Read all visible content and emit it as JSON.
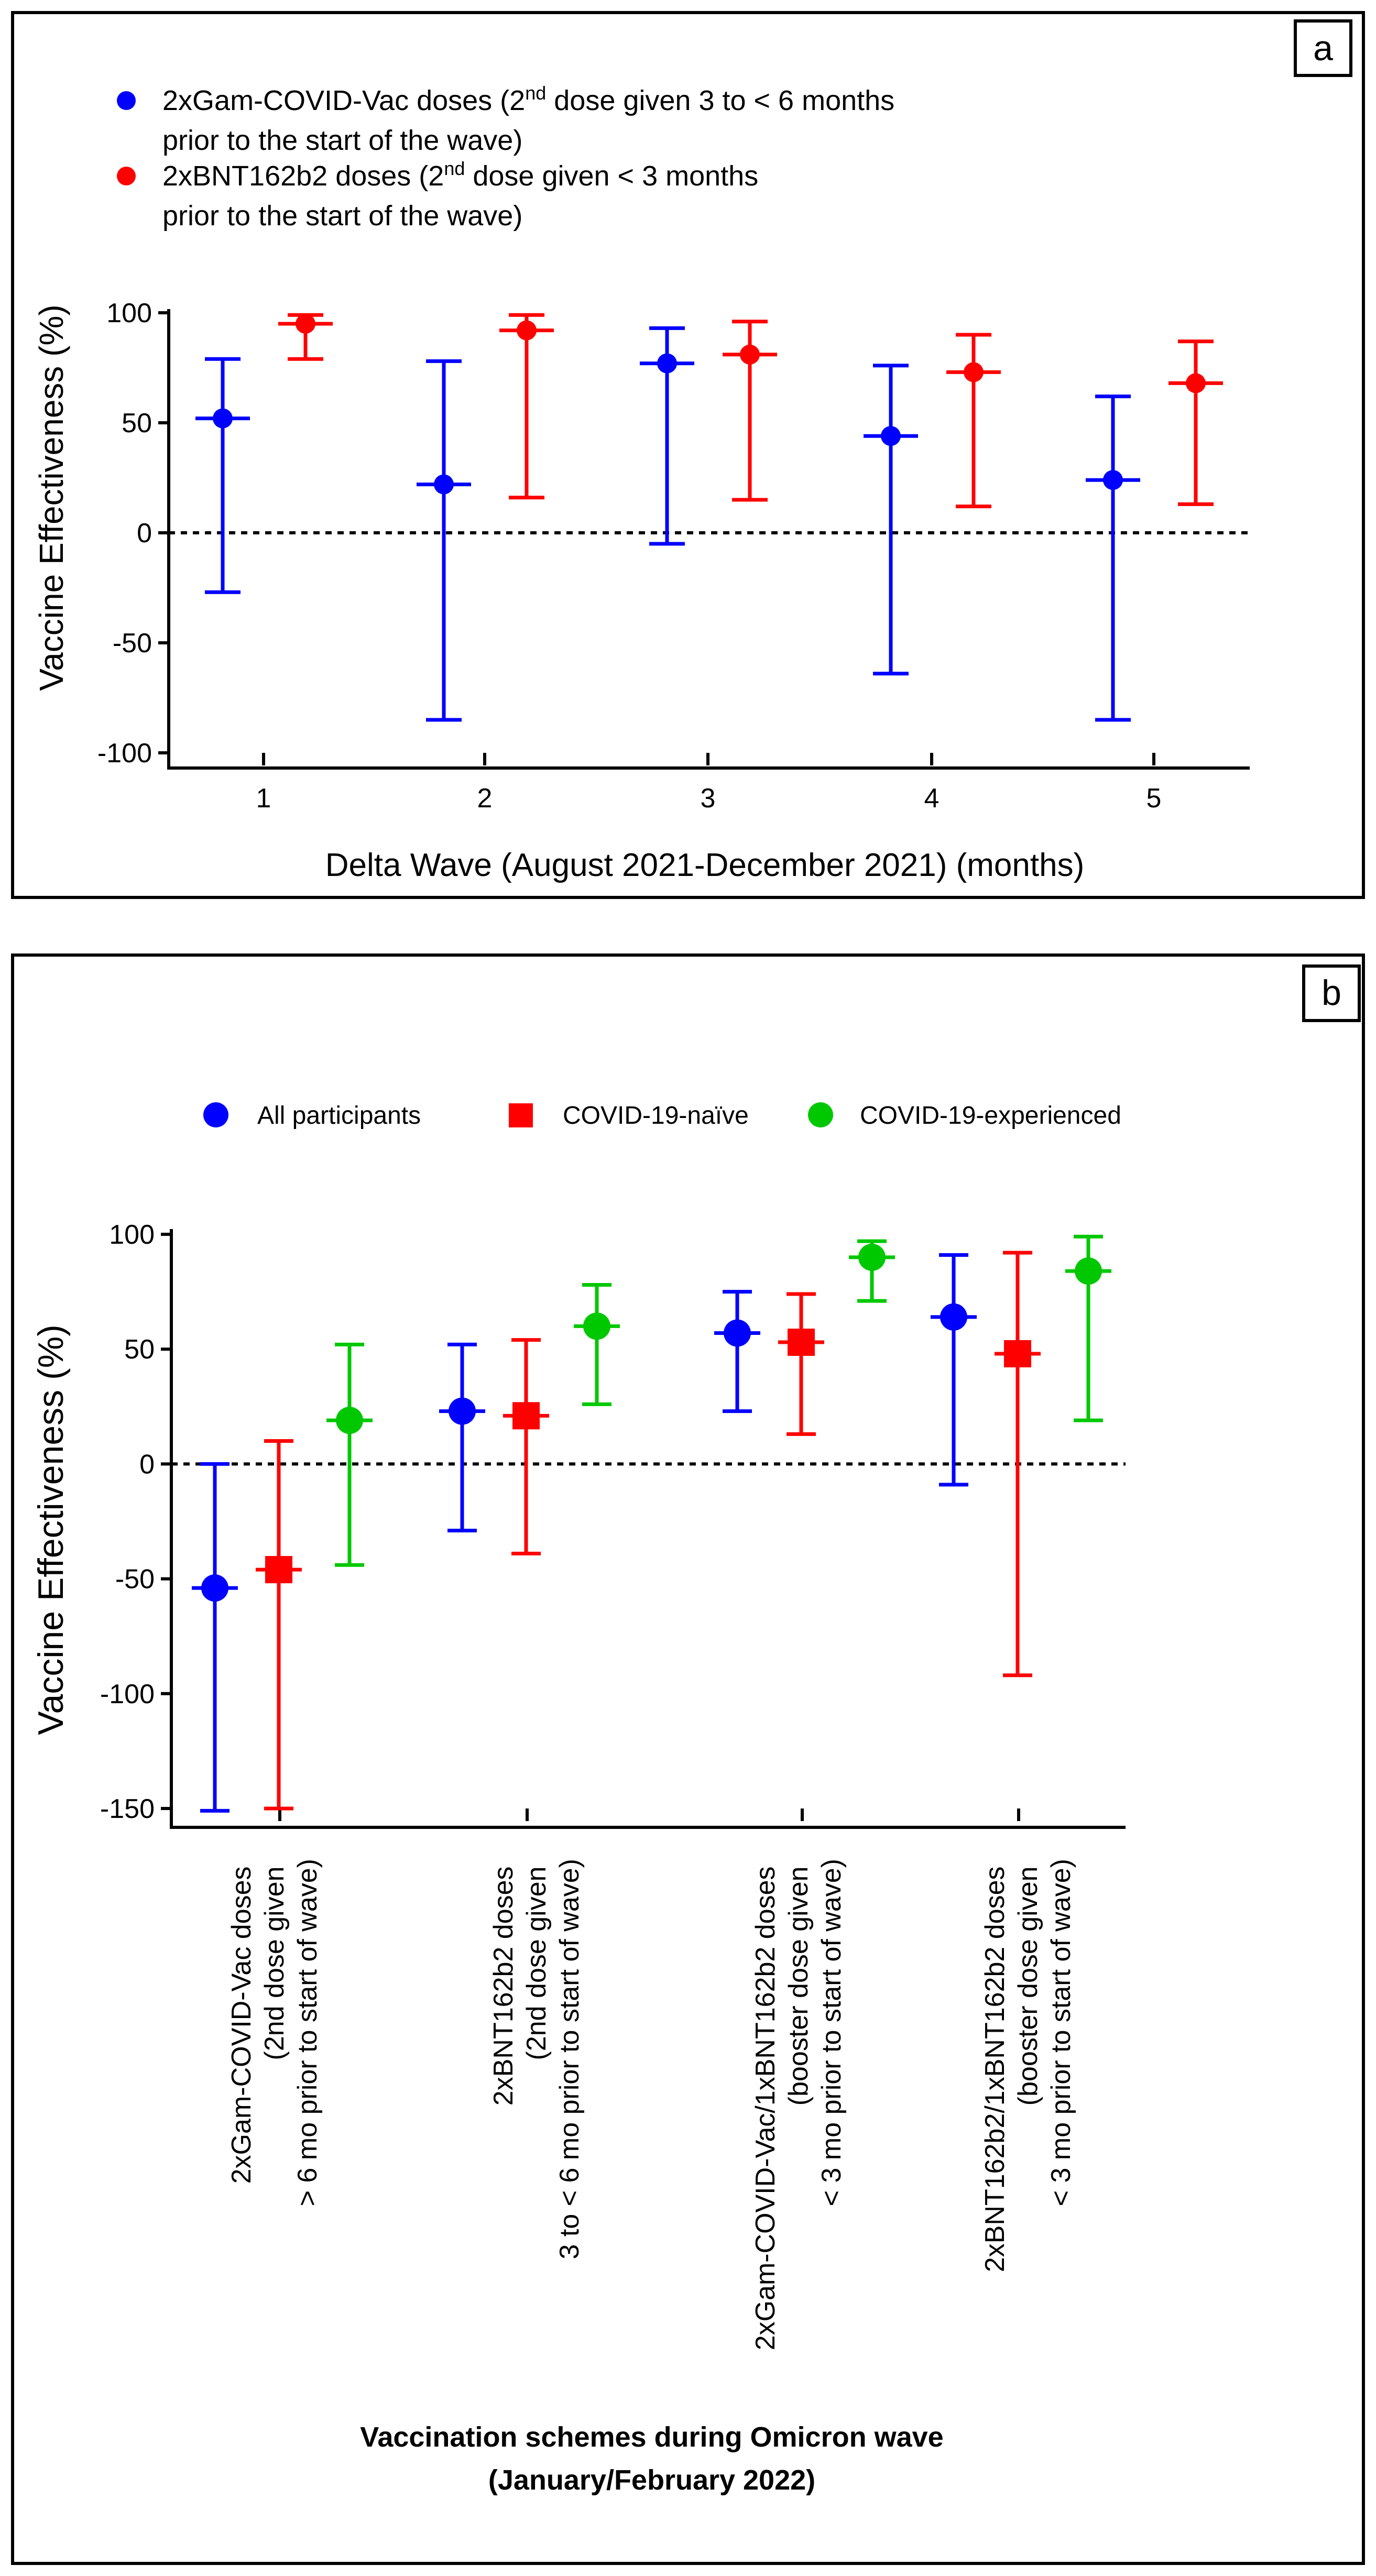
{
  "colors": {
    "blue": "#0000ff",
    "red": "#ff0000",
    "green": "#00c800",
    "black": "#000000"
  },
  "chart_data": [
    {
      "type": "scatter",
      "panel_label": "a",
      "title": "",
      "xlabel": "Delta Wave (August 2021-December 2021) (months)",
      "ylabel": "Vaccine Effectiveness (%)",
      "ylim": [
        -100,
        100
      ],
      "yticks": [
        100,
        50,
        0,
        -50,
        -100
      ],
      "categories": [
        "1",
        "2",
        "3",
        "4",
        "5"
      ],
      "reference_line": 0,
      "legend": [
        {
          "text_lines": [
            "2xGam-COVID-Vac doses (2",
            "nd",
            " dose given 3 to < 6 months",
            "prior to the start of the wave)"
          ],
          "color": "blue"
        },
        {
          "text_lines": [
            "2xBNT162b2 doses (2",
            "nd",
            " dose given < 3 months",
            "prior to the start of the wave)"
          ],
          "color": "red"
        }
      ],
      "series": [
        {
          "name": "2xGam-COVID-Vac doses (2nd dose given 3 to < 6 months prior to the start of the wave)",
          "color": "blue",
          "marker": "circle",
          "values": [
            52,
            22,
            77,
            44,
            24
          ],
          "lower": [
            -27,
            -85,
            -5,
            -64,
            -85
          ],
          "upper": [
            79,
            78,
            93,
            76,
            62
          ]
        },
        {
          "name": "2xBNT162b2 doses (2nd dose given < 3 months prior to the start of the wave)",
          "color": "red",
          "marker": "circle",
          "values": [
            95,
            92,
            81,
            73,
            68
          ],
          "lower": [
            79,
            16,
            15,
            12,
            13
          ],
          "upper": [
            99,
            99,
            96,
            90,
            87
          ]
        }
      ]
    },
    {
      "type": "scatter",
      "panel_label": "b",
      "title": "",
      "xlabel_lines": [
        "Vaccination schemes during Omicron wave",
        "(January/February 2022)"
      ],
      "ylabel": "Vaccine Effectiveness (%)",
      "ylim": [
        -150,
        100
      ],
      "yticks": [
        100,
        50,
        0,
        -50,
        -100,
        -150
      ],
      "reference_line": 0,
      "legend": [
        {
          "text": "All participants",
          "color": "blue",
          "marker": "circle"
        },
        {
          "text": "COVID-19-naïve",
          "color": "red",
          "marker": "square"
        },
        {
          "text": "COVID-19-experienced",
          "color": "green",
          "marker": "circle"
        }
      ],
      "categories": [
        {
          "lines": [
            "2xGam-COVID-Vac doses",
            "(2nd dose given",
            "> 6 mo prior to start of wave)"
          ]
        },
        {
          "lines": [
            "2xBNT162b2 doses",
            "(2nd dose given",
            "3 to < 6 mo prior to start of wave)"
          ]
        },
        {
          "lines": [
            "2xGam-COVID-Vac/1xBNT162b2 doses",
            "(booster dose given",
            "< 3 mo prior to start of wave)"
          ]
        },
        {
          "lines": [
            "2xBNT162b2/1xBNT162b2 doses",
            "(booster dose given",
            "< 3 mo prior to start of wave)"
          ]
        }
      ],
      "series": [
        {
          "name": "All participants",
          "color": "blue",
          "marker": "circle",
          "values": [
            -54,
            23,
            57,
            64
          ],
          "lower": [
            -151,
            -29,
            23,
            -9
          ],
          "upper": [
            0,
            52,
            75,
            91
          ]
        },
        {
          "name": "COVID-19-naïve",
          "color": "red",
          "marker": "square",
          "values": [
            -46,
            21,
            53,
            48
          ],
          "lower": [
            -150,
            -39,
            13,
            -92
          ],
          "upper": [
            10,
            54,
            74,
            92
          ]
        },
        {
          "name": "COVID-19-experienced",
          "color": "green",
          "marker": "circle",
          "values": [
            19,
            60,
            90,
            84
          ],
          "lower": [
            -44,
            26,
            71,
            19
          ],
          "upper": [
            52,
            78,
            97,
            99
          ]
        }
      ]
    }
  ]
}
